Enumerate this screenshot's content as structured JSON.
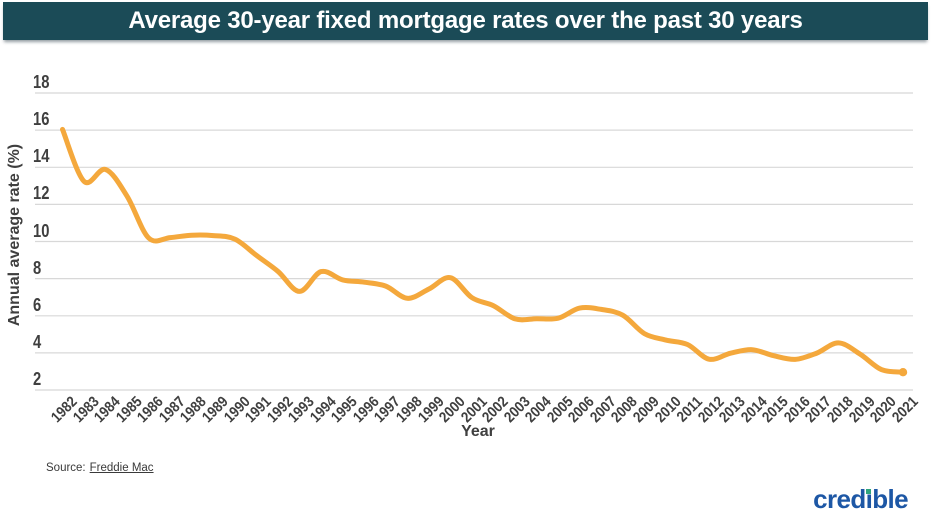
{
  "header": {
    "title": "Average 30-year fixed mortgage rates over the past 30 years"
  },
  "chart_data": {
    "type": "line",
    "title": "Average 30-year fixed mortgage rates over the past 30 years",
    "xlabel": "Year",
    "ylabel": "Annual average rate (%)",
    "x": [
      "1982",
      "1983",
      "1984",
      "1985",
      "1986",
      "1987",
      "1988",
      "1989",
      "1990",
      "1991",
      "1992",
      "1993",
      "1994",
      "1995",
      "1996",
      "1997",
      "1998",
      "1999",
      "2000",
      "2001",
      "2002",
      "2003",
      "2004",
      "2005",
      "2006",
      "2007",
      "2008",
      "2009",
      "2010",
      "2011",
      "2012",
      "2013",
      "2014",
      "2015",
      "2016",
      "2017",
      "2018",
      "2019",
      "2020",
      "2021"
    ],
    "series": [
      {
        "name": "30-year fixed mortgage rate",
        "values": [
          16.04,
          13.24,
          13.88,
          12.43,
          10.19,
          10.21,
          10.34,
          10.32,
          10.13,
          9.25,
          8.39,
          7.31,
          8.38,
          7.93,
          7.81,
          7.6,
          6.94,
          7.44,
          8.05,
          6.97,
          6.54,
          5.83,
          5.84,
          5.87,
          6.41,
          6.34,
          6.03,
          5.04,
          4.69,
          4.45,
          3.66,
          3.98,
          4.17,
          3.85,
          3.65,
          3.99,
          4.54,
          3.94,
          3.1,
          2.96
        ]
      }
    ],
    "yticks": [
      2,
      4,
      6,
      8,
      10,
      12,
      14,
      16,
      18
    ],
    "ylim": [
      2,
      18
    ],
    "grid": true,
    "legend": "none",
    "smooth": true,
    "line_color": "#F4A83C"
  },
  "footer": {
    "source_prefix": "Source:",
    "source_link": "Freddie Mac",
    "logo_text": "credible",
    "logo_color": "#1D57A5",
    "logo_dot_color": "#2EA57C"
  },
  "colors": {
    "banner_bg": "#1B4B57",
    "banner_text": "#FFFFFF",
    "grid": "#D8D8D8",
    "tick_text": "#3F3F3F"
  }
}
